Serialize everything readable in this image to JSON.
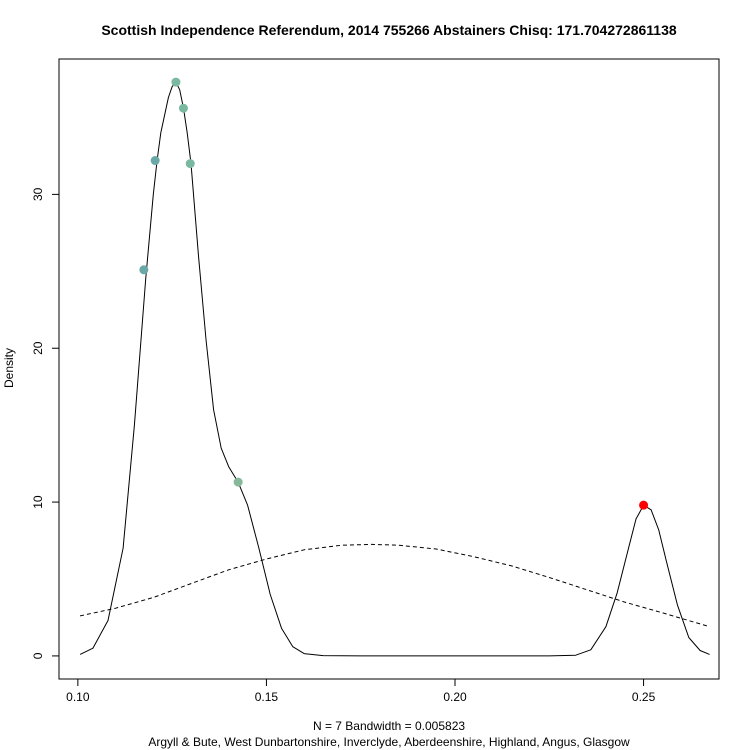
{
  "chart_data": {
    "type": "line",
    "title": "Scottish Independence Referendum, 2014 755266 Abstainers Chisq: 171.704272861138",
    "ylabel": "Density",
    "xlabel_line1": "N = 7   Bandwidth = 0.005823",
    "xlabel_line2": "Argyll & Bute, West Dunbartonshire, Inverclyde, Aberdeenshire, Highland, Angus, Glasgow",
    "xlim": [
      0.095,
      0.27
    ],
    "ylim": [
      -1.5,
      38.8
    ],
    "x_ticks": [
      0.1,
      0.15,
      0.2,
      0.25
    ],
    "x_tick_labels": [
      "0.10",
      "0.15",
      "0.20",
      "0.25"
    ],
    "y_ticks": [
      0,
      10,
      20,
      30
    ],
    "y_tick_labels": [
      "0",
      "10",
      "20",
      "30"
    ],
    "grid": false,
    "series": [
      {
        "style": "solid",
        "color": "#000000",
        "points": [
          [
            0.1006,
            0.1
          ],
          [
            0.104,
            0.5
          ],
          [
            0.108,
            2.3
          ],
          [
            0.112,
            7.0
          ],
          [
            0.115,
            15.0
          ],
          [
            0.118,
            24.5
          ],
          [
            0.12,
            30.0
          ],
          [
            0.121,
            32.2
          ],
          [
            0.122,
            34.0
          ],
          [
            0.124,
            36.3
          ],
          [
            0.125,
            37.0
          ],
          [
            0.126,
            37.3
          ],
          [
            0.127,
            36.8
          ],
          [
            0.128,
            35.6
          ],
          [
            0.129,
            34.0
          ],
          [
            0.13,
            32.0
          ],
          [
            0.132,
            26.0
          ],
          [
            0.134,
            20.5
          ],
          [
            0.136,
            16.0
          ],
          [
            0.138,
            13.5
          ],
          [
            0.14,
            12.3
          ],
          [
            0.1425,
            11.3
          ],
          [
            0.145,
            9.8
          ],
          [
            0.148,
            7.0
          ],
          [
            0.151,
            4.0
          ],
          [
            0.154,
            1.8
          ],
          [
            0.157,
            0.6
          ],
          [
            0.16,
            0.15
          ],
          [
            0.165,
            0.02
          ],
          [
            0.175,
            0
          ],
          [
            0.225,
            0
          ],
          [
            0.232,
            0.05
          ],
          [
            0.236,
            0.4
          ],
          [
            0.24,
            1.9
          ],
          [
            0.243,
            4.1
          ],
          [
            0.246,
            7.0
          ],
          [
            0.248,
            8.9
          ],
          [
            0.25,
            9.8
          ],
          [
            0.252,
            9.5
          ],
          [
            0.254,
            8.2
          ],
          [
            0.256,
            6.2
          ],
          [
            0.259,
            3.3
          ],
          [
            0.262,
            1.2
          ],
          [
            0.265,
            0.35
          ],
          [
            0.2675,
            0.1
          ]
        ]
      },
      {
        "style": "dashed",
        "color": "#000000",
        "points": [
          [
            0.1006,
            2.6
          ],
          [
            0.11,
            3.1
          ],
          [
            0.12,
            3.8
          ],
          [
            0.13,
            4.7
          ],
          [
            0.14,
            5.6
          ],
          [
            0.15,
            6.3
          ],
          [
            0.16,
            6.9
          ],
          [
            0.17,
            7.2
          ],
          [
            0.178,
            7.25
          ],
          [
            0.185,
            7.2
          ],
          [
            0.195,
            6.95
          ],
          [
            0.205,
            6.45
          ],
          [
            0.215,
            5.85
          ],
          [
            0.225,
            5.1
          ],
          [
            0.235,
            4.3
          ],
          [
            0.245,
            3.5
          ],
          [
            0.255,
            2.8
          ],
          [
            0.2675,
            1.9
          ]
        ]
      }
    ],
    "points": [
      {
        "x": 0.1175,
        "y": 25.1,
        "color": "#6aa8a8"
      },
      {
        "x": 0.1205,
        "y": 32.2,
        "color": "#6aa8a8"
      },
      {
        "x": 0.126,
        "y": 37.3,
        "color": "#7ab8a0"
      },
      {
        "x": 0.128,
        "y": 35.6,
        "color": "#7ab8a0"
      },
      {
        "x": 0.1298,
        "y": 32.0,
        "color": "#7ab8a0"
      },
      {
        "x": 0.1425,
        "y": 11.3,
        "color": "#86b99a"
      },
      {
        "x": 0.25,
        "y": 9.8,
        "color": "#ff0000"
      }
    ]
  }
}
